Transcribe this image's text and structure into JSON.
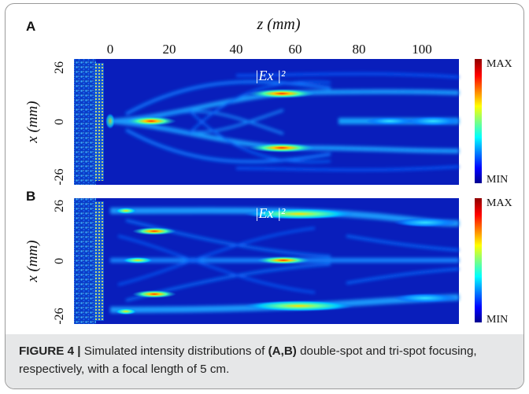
{
  "figure": {
    "z_axis_label": "z (mm)",
    "z_ticks": [
      "0",
      "20",
      "40",
      "60",
      "80",
      "100"
    ],
    "colorbar": {
      "max_label": "MAX",
      "min_label": "MIN"
    },
    "panels": [
      {
        "label": "A",
        "x_axis_label": "x (mm)",
        "x_ticks": [
          "26",
          "0",
          "-26"
        ],
        "field_label": "|Ex |²"
      },
      {
        "label": "B",
        "x_axis_label": "x (mm)",
        "x_ticks": [
          "26",
          "0",
          "-26"
        ],
        "field_label": "|Ex |²"
      }
    ]
  },
  "caption": {
    "figure_number": "FIGURE 4 |",
    "text_1": " Simulated intensity distributions of ",
    "bold_refs": "(A,B)",
    "text_2": " double-spot and tri-spot focusing, respectively, with a focal length of 5 cm."
  }
}
